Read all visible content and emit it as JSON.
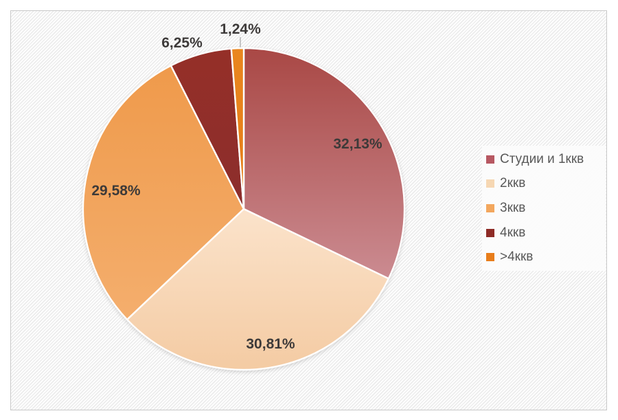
{
  "chart_data": {
    "type": "pie",
    "title": "",
    "legend_position": "right",
    "start_angle_deg": 0,
    "direction": "clockwise",
    "units": "%",
    "slices": [
      {
        "label": "Студии и 1ккв",
        "value": 32.13,
        "percent_label": "32,13%",
        "color_top": "#a94845",
        "color_bottom": "#cb8b91",
        "legend_color": "#b75862"
      },
      {
        "label": "2ккв",
        "value": 30.81,
        "percent_label": "30,81%",
        "color_top": "#fbe3cb",
        "color_bottom": "#f4cba3",
        "legend_color": "#f6d7b3"
      },
      {
        "label": "3ккв",
        "value": 29.58,
        "percent_label": "29,58%",
        "color_top": "#ef9a4b",
        "color_bottom": "#f4ae6d",
        "legend_color": "#f3a75e"
      },
      {
        "label": "4ккв",
        "value": 6.25,
        "percent_label": "6,25%",
        "color_top": "#952f28",
        "color_bottom": "#8c2e2c",
        "legend_color": "#8e2b26"
      },
      {
        "label": ">4ккв",
        "value": 1.24,
        "percent_label": "1,24%",
        "color_top": "#e9861f",
        "color_bottom": "#e67d16",
        "legend_color": "#e87d1b"
      }
    ]
  },
  "styles": {
    "data_label_color": "#3d3a39",
    "legend_text_color": "#595959",
    "panel_border_color": "#c9c9c9",
    "slice_border_color": "#ffffff",
    "leader_line_color": "#a6a6a6"
  }
}
